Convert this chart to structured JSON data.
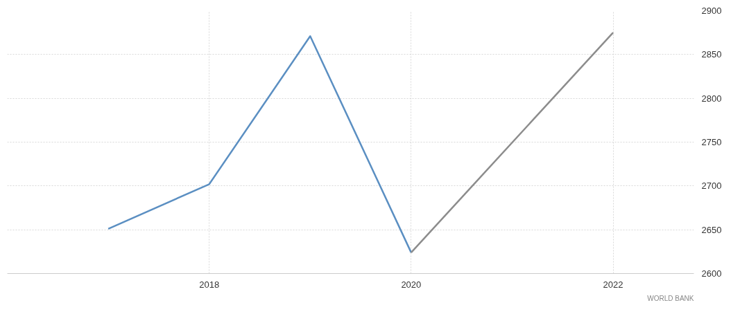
{
  "chart_data": {
    "type": "line",
    "x": [
      2017,
      2018,
      2019,
      2020
    ],
    "series": [
      {
        "color": "#5b8fc2",
        "values": [
          2651,
          2702,
          2871,
          2624
        ]
      },
      {
        "color": "#8c8c8c",
        "x": [
          2020,
          2022
        ],
        "values": [
          2624,
          2875
        ]
      }
    ],
    "xlim": [
      2016,
      2022.8
    ],
    "xticks": [
      2018,
      2020,
      2022
    ],
    "ylim": [
      2600,
      2900
    ],
    "yticks": [
      2600,
      2650,
      2700,
      2750,
      2800,
      2850,
      2900
    ],
    "grid": true,
    "line_style": "solid",
    "marker": "none",
    "annotations": [
      "WORLD BANK"
    ]
  }
}
